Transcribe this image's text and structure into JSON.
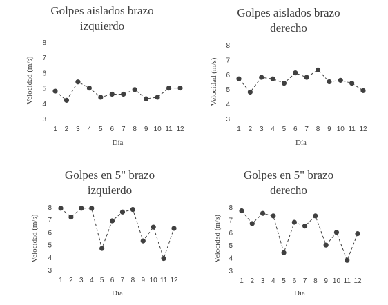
{
  "chart_data": [
    {
      "type": "line",
      "title_lines": [
        "Golpes aislados brazo",
        "izquierdo"
      ],
      "xlabel": "Día",
      "ylabel": "Velocidad (m/s)",
      "x": [
        1,
        2,
        3,
        4,
        5,
        6,
        7,
        8,
        9,
        10,
        11,
        12
      ],
      "y_ticks": [
        3,
        4,
        5,
        6,
        7,
        8
      ],
      "ylim": [
        3,
        8
      ],
      "series": [
        {
          "values": [
            4.8,
            4.2,
            5.4,
            5.0,
            4.4,
            4.6,
            4.6,
            4.9,
            4.3,
            4.4,
            5.0,
            5.0
          ]
        }
      ],
      "line_style": "dashed",
      "marker": "circle",
      "grid": false,
      "color": "#404040"
    },
    {
      "type": "line",
      "title_lines": [
        "Golpes aislados brazo",
        "derecho"
      ],
      "xlabel": "Día",
      "ylabel": "Velocidad (m/s)",
      "x": [
        1,
        2,
        3,
        4,
        5,
        6,
        7,
        8,
        9,
        10,
        11,
        12
      ],
      "y_ticks": [
        3,
        4,
        5,
        6,
        7,
        8
      ],
      "ylim": [
        3,
        8
      ],
      "series": [
        {
          "values": [
            5.7,
            4.8,
            5.8,
            5.7,
            5.4,
            6.1,
            5.8,
            6.3,
            5.5,
            5.6,
            5.4,
            4.9
          ]
        }
      ],
      "line_style": "dashed",
      "marker": "circle",
      "grid": false,
      "color": "#404040"
    },
    {
      "type": "line",
      "title_lines": [
        "Golpes en 5\" brazo",
        "izquierdo"
      ],
      "xlabel": "Día",
      "ylabel": "Velocidad (m/s)",
      "x": [
        1,
        2,
        3,
        4,
        5,
        6,
        7,
        8,
        9,
        10,
        11,
        12
      ],
      "y_ticks": [
        3,
        4,
        5,
        6,
        7,
        8
      ],
      "ylim": [
        3,
        8
      ],
      "series": [
        {
          "values": [
            7.9,
            7.2,
            7.9,
            7.9,
            4.7,
            6.9,
            7.6,
            7.8,
            5.3,
            6.4,
            3.9,
            6.3
          ]
        }
      ],
      "line_style": "dashed",
      "marker": "circle",
      "grid": false,
      "color": "#404040"
    },
    {
      "type": "line",
      "title_lines": [
        "Golpes en 5\" brazo",
        "derecho"
      ],
      "xlabel": "Día",
      "ylabel": "Velocidad (m/s)",
      "x": [
        1,
        2,
        3,
        4,
        5,
        6,
        7,
        8,
        9,
        10,
        11,
        12
      ],
      "y_ticks": [
        3,
        4,
        5,
        6,
        7,
        8
      ],
      "ylim": [
        3,
        8
      ],
      "series": [
        {
          "values": [
            7.7,
            6.7,
            7.5,
            7.3,
            4.4,
            6.8,
            6.5,
            7.3,
            5.0,
            6.0,
            3.8,
            5.9
          ]
        }
      ],
      "line_style": "dashed",
      "marker": "circle",
      "grid": false,
      "color": "#404040"
    }
  ]
}
